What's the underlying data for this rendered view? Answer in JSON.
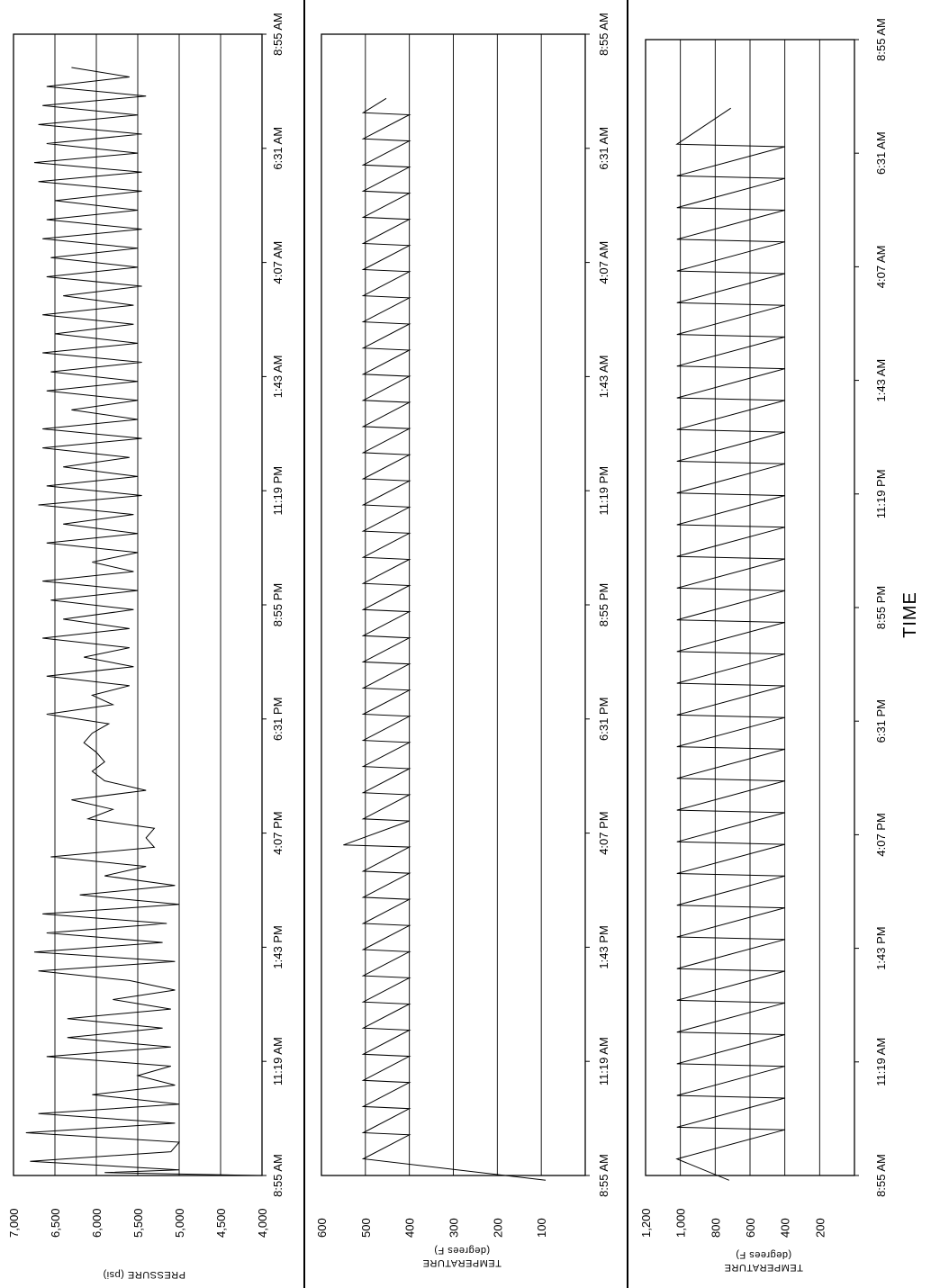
{
  "chart_data": [
    {
      "type": "line",
      "title": "",
      "ylabel": "PRESSURE (psi)",
      "xlabel": "TIME",
      "ylim": [
        4000,
        7000
      ],
      "y_ticks": [
        "7,000",
        "6,500",
        "6,000",
        "5,500",
        "5,000",
        "4,500",
        "4,000"
      ],
      "x_ticks": [
        "8:55 AM",
        "11:19 AM",
        "1:43 PM",
        "4:07 PM",
        "6:31 PM",
        "8:55 PM",
        "11:19 PM",
        "1:43 AM",
        "4:07 AM",
        "6:31 AM",
        "8:55 AM"
      ],
      "gridlines": [
        6500,
        6000,
        5500,
        5000,
        4500
      ],
      "orientation": "rotated-90",
      "series": [
        {
          "x_hours": [
            0,
            0.06,
            0.12,
            0.3,
            0.5,
            0.7,
            0.9,
            1.1,
            1.3,
            1.5,
            1.7,
            1.9,
            2.1,
            2.3,
            2.5,
            2.7,
            2.9,
            3.1,
            3.3,
            3.5,
            3.7,
            3.9,
            4.1,
            4.3,
            4.5,
            4.7,
            4.9,
            5.1,
            5.3,
            5.5,
            5.7,
            5.9,
            6.1,
            6.3,
            6.5,
            6.7,
            6.9,
            7.1,
            7.3,
            7.5,
            7.7,
            7.9,
            8.1,
            8.3,
            8.5,
            8.7,
            8.9,
            9.1,
            9.3,
            9.5,
            9.7,
            9.9,
            10.1,
            10.3,
            10.5,
            10.7,
            10.9,
            11.1,
            11.3,
            11.5,
            11.7,
            11.9,
            12.1,
            12.3,
            12.5,
            12.7,
            12.9,
            13.1,
            13.3,
            13.5,
            13.7,
            13.9,
            14.1,
            14.3,
            14.5,
            14.7,
            14.9,
            15.1,
            15.3,
            15.5,
            15.7,
            15.9,
            16.1,
            16.3,
            16.5,
            16.7,
            16.9,
            17.1,
            17.3,
            17.5,
            17.7,
            17.9,
            18.1,
            18.3,
            18.5,
            18.7,
            18.9,
            19.1,
            19.3,
            19.5,
            19.7,
            19.9,
            20.1,
            20.3,
            20.5,
            20.7,
            20.9,
            21.1,
            21.3,
            21.5,
            21.7,
            21.9,
            22.1,
            22.3,
            22.5,
            22.7,
            22.9,
            23.1,
            23.3
          ],
          "values": [
            4050,
            5900,
            5000,
            6800,
            5100,
            5000,
            6850,
            5050,
            6700,
            5000,
            6050,
            5050,
            5500,
            5100,
            6600,
            5100,
            6350,
            5200,
            6350,
            5100,
            5800,
            5050,
            5600,
            6700,
            5050,
            6750,
            5200,
            6600,
            5150,
            6650,
            5000,
            6200,
            5050,
            5900,
            5400,
            6550,
            5300,
            5400,
            5300,
            6100,
            5800,
            6300,
            5400,
            5900,
            6050,
            5900,
            6000,
            6150,
            6050,
            5850,
            6600,
            5800,
            6050,
            5600,
            6600,
            5550,
            6150,
            5600,
            6650,
            5600,
            6400,
            5550,
            6550,
            5500,
            6650,
            5550,
            6050,
            5500,
            6600,
            5500,
            6400,
            5550,
            6700,
            5450,
            6600,
            5500,
            6400,
            5600,
            6650,
            5450,
            6650,
            5500,
            6300,
            5500,
            6600,
            5500,
            6550,
            5450,
            6650,
            5500,
            6500,
            5550,
            6650,
            5550,
            6400,
            5450,
            6600,
            5500,
            6550,
            5500,
            6650,
            5450,
            6600,
            5500,
            6500,
            5450,
            6700,
            5450,
            6750,
            5500,
            6600,
            5450,
            6700,
            5500,
            6650,
            5400,
            6600,
            5600,
            6300
          ]
        }
      ]
    },
    {
      "type": "line",
      "title": "",
      "ylabel": "TEMPERATURE",
      "ylabel_units": "(degrees F)",
      "xlabel": "TIME",
      "ylim": [
        0,
        600
      ],
      "y_ticks": [
        "600",
        "500",
        "400",
        "300",
        "200",
        "100"
      ],
      "x_ticks": [
        "8:55 AM",
        "11:19 AM",
        "1:43 PM",
        "4:07 PM",
        "6:31 PM",
        "8:55 PM",
        "11:19 PM",
        "1:43 AM",
        "4:07 AM",
        "6:31 AM",
        "8:55 AM"
      ],
      "gridlines": [
        500,
        400,
        300,
        200,
        100
      ],
      "orientation": "rotated-90",
      "series": [
        {
          "cycle_period_hours": 0.55,
          "peak": 505,
          "trough": 400,
          "start_value": 90,
          "spike_at_hours": 7.0,
          "spike_value": 550,
          "end_hours": 22.4
        }
      ]
    },
    {
      "type": "line",
      "title": "",
      "ylabel": "TEMPERATURE",
      "ylabel_units": "(degrees F)",
      "xlabel": "TIME",
      "ylim": [
        0,
        1200
      ],
      "y_ticks": [
        "1,200",
        "1,000",
        "800",
        "600",
        "400",
        "200"
      ],
      "x_ticks": [
        "8:55 AM",
        "11:19 AM",
        "1:43 PM",
        "4:07 PM",
        "6:31 PM",
        "8:55 PM",
        "11:19 PM",
        "1:43 AM",
        "4:07 AM",
        "6:31 AM",
        "8:55 AM"
      ],
      "gridlines": [
        1000,
        800,
        600,
        400,
        200
      ],
      "orientation": "rotated-90",
      "series": [
        {
          "cycle_period_hours": 0.67,
          "peak": 1020,
          "trough": 400,
          "start_value": 720,
          "end_hours": 22.3
        }
      ]
    }
  ]
}
